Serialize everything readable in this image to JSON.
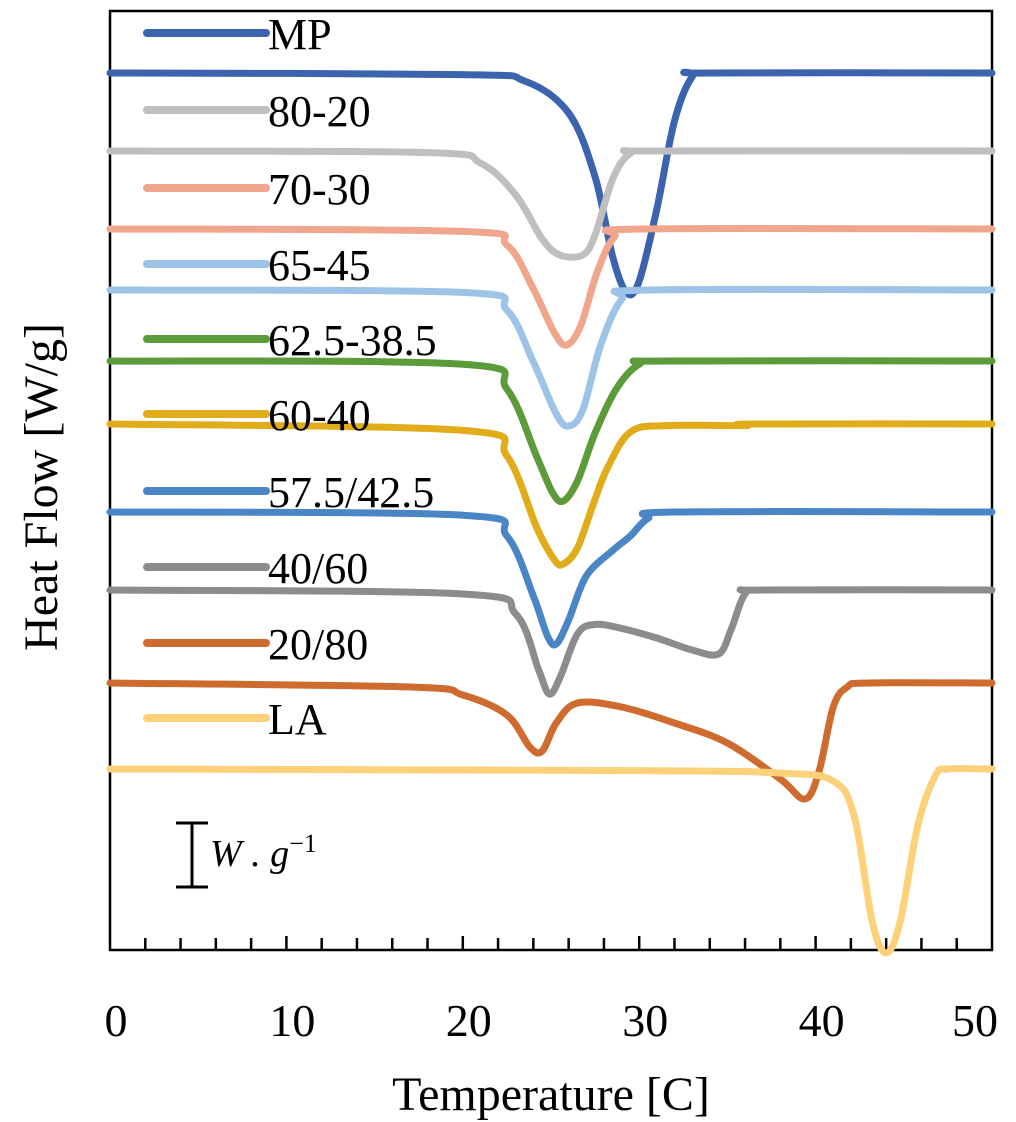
{
  "chart_data": {
    "type": "line",
    "xlabel": "Temperature [C]",
    "ylabel": "Heat Flow [W/g]",
    "xlim": [
      0,
      50
    ],
    "x_ticks": [
      0,
      10,
      20,
      30,
      40,
      50
    ],
    "x_minor_step": 2,
    "y_ticks_shown": false,
    "grid": false,
    "legend_position": "top-left",
    "scale_bar_label": "W . g⁻¹",
    "scale_bar_unit": "W",
    "scale_bar_exponent": "−1",
    "baselines": "curves are vertically offset for clarity; y values are relative heat flow in W/g",
    "series": [
      {
        "name": "MP",
        "color": "#3c64ae",
        "points": [
          [
            0,
            0
          ],
          [
            20,
            -0.02
          ],
          [
            23.5,
            -0.1
          ],
          [
            26,
            -0.5
          ],
          [
            27.5,
            -1.3
          ],
          [
            28.5,
            -2.3
          ],
          [
            29.3,
            -2.75
          ],
          [
            30,
            -2.6
          ],
          [
            31,
            -1.7
          ],
          [
            32,
            -0.6
          ],
          [
            33,
            -0.05
          ],
          [
            34,
            0
          ],
          [
            50,
            0
          ]
        ]
      },
      {
        "name": "80-20",
        "color": "#bfbfbf",
        "points": [
          [
            0,
            0
          ],
          [
            18,
            -0.02
          ],
          [
            21,
            -0.15
          ],
          [
            23,
            -0.55
          ],
          [
            24.5,
            -1.1
          ],
          [
            25.5,
            -1.3
          ],
          [
            26.8,
            -1.3
          ],
          [
            27.5,
            -1.05
          ],
          [
            28.5,
            -0.35
          ],
          [
            29.5,
            -0.03
          ],
          [
            31,
            0
          ],
          [
            50,
            0
          ]
        ]
      },
      {
        "name": "70-30",
        "color": "#f0a68c",
        "points": [
          [
            0,
            0
          ],
          [
            20,
            -0.03
          ],
          [
            22.5,
            -0.2
          ],
          [
            24,
            -0.75
          ],
          [
            25.2,
            -1.3
          ],
          [
            25.9,
            -1.45
          ],
          [
            26.7,
            -1.2
          ],
          [
            27.6,
            -0.55
          ],
          [
            28.6,
            -0.1
          ],
          [
            30,
            0
          ],
          [
            50,
            0
          ]
        ]
      },
      {
        "name": "65-45",
        "color": "#9dc3e6",
        "points": [
          [
            0,
            0
          ],
          [
            20,
            -0.03
          ],
          [
            22.5,
            -0.25
          ],
          [
            24,
            -0.9
          ],
          [
            25.3,
            -1.55
          ],
          [
            26,
            -1.7
          ],
          [
            26.8,
            -1.5
          ],
          [
            27.8,
            -0.7
          ],
          [
            29,
            -0.12
          ],
          [
            30.5,
            0
          ],
          [
            50,
            0
          ]
        ]
      },
      {
        "name": "62.5-38.5",
        "color": "#5b9b3a",
        "points": [
          [
            0,
            0
          ],
          [
            20,
            -0.04
          ],
          [
            22.5,
            -0.35
          ],
          [
            24.2,
            -1.2
          ],
          [
            25.1,
            -1.65
          ],
          [
            25.7,
            -1.75
          ],
          [
            26.5,
            -1.5
          ],
          [
            27.5,
            -0.9
          ],
          [
            28.7,
            -0.35
          ],
          [
            30,
            -0.04
          ],
          [
            31.5,
            0
          ],
          [
            50,
            0
          ]
        ]
      },
      {
        "name": "60-40",
        "color": "#e0ac1a",
        "points": [
          [
            0,
            0
          ],
          [
            20,
            -0.08
          ],
          [
            22.5,
            -0.4
          ],
          [
            24.2,
            -1.3
          ],
          [
            25.2,
            -1.7
          ],
          [
            25.7,
            -1.75
          ],
          [
            26.5,
            -1.55
          ],
          [
            27.4,
            -1.0
          ],
          [
            28.2,
            -0.55
          ],
          [
            29.5,
            -0.1
          ],
          [
            31.5,
            -0.02
          ],
          [
            36,
            -0.02
          ],
          [
            36.5,
            0
          ],
          [
            50,
            0
          ]
        ]
      },
      {
        "name": "57.5/42.5",
        "color": "#4a86c5",
        "points": [
          [
            0,
            0
          ],
          [
            20,
            -0.04
          ],
          [
            22.5,
            -0.3
          ],
          [
            24,
            -1.05
          ],
          [
            24.8,
            -1.55
          ],
          [
            25.3,
            -1.65
          ],
          [
            26,
            -1.35
          ],
          [
            27,
            -0.8
          ],
          [
            28.5,
            -0.48
          ],
          [
            29.5,
            -0.3
          ],
          [
            30.5,
            -0.08
          ],
          [
            32,
            0
          ],
          [
            50,
            0
          ]
        ]
      },
      {
        "name": "40/60",
        "color": "#8c8c8c",
        "points": [
          [
            0,
            0
          ],
          [
            20,
            -0.05
          ],
          [
            23,
            -0.3
          ],
          [
            24.3,
            -1.0
          ],
          [
            24.9,
            -1.3
          ],
          [
            25.5,
            -1.1
          ],
          [
            26.5,
            -0.55
          ],
          [
            27.5,
            -0.43
          ],
          [
            29,
            -0.48
          ],
          [
            31,
            -0.6
          ],
          [
            33,
            -0.75
          ],
          [
            34.5,
            -0.8
          ],
          [
            35.2,
            -0.5
          ],
          [
            36,
            -0.05
          ],
          [
            37,
            0
          ],
          [
            50,
            0
          ]
        ]
      },
      {
        "name": "20/80",
        "color": "#cf6b2e",
        "points": [
          [
            0,
            0
          ],
          [
            17,
            -0.05
          ],
          [
            20,
            -0.15
          ],
          [
            22.5,
            -0.4
          ],
          [
            23.8,
            -0.8
          ],
          [
            24.5,
            -0.85
          ],
          [
            25.3,
            -0.5
          ],
          [
            26.5,
            -0.25
          ],
          [
            29,
            -0.3
          ],
          [
            32,
            -0.5
          ],
          [
            35,
            -0.75
          ],
          [
            38,
            -1.2
          ],
          [
            39.4,
            -1.45
          ],
          [
            40.2,
            -1.1
          ],
          [
            41,
            -0.3
          ],
          [
            41.8,
            -0.05
          ],
          [
            43,
            0
          ],
          [
            50,
            0
          ]
        ]
      },
      {
        "name": "LA",
        "color": "#fcd17a",
        "points": [
          [
            0,
            0
          ],
          [
            30,
            -0.02
          ],
          [
            38,
            -0.05
          ],
          [
            41,
            -0.15
          ],
          [
            42.2,
            -0.6
          ],
          [
            43.2,
            -1.9
          ],
          [
            44,
            -2.3
          ],
          [
            44.8,
            -1.9
          ],
          [
            45.8,
            -0.7
          ],
          [
            46.8,
            -0.08
          ],
          [
            47.5,
            0
          ],
          [
            50,
            0
          ]
        ]
      }
    ]
  }
}
